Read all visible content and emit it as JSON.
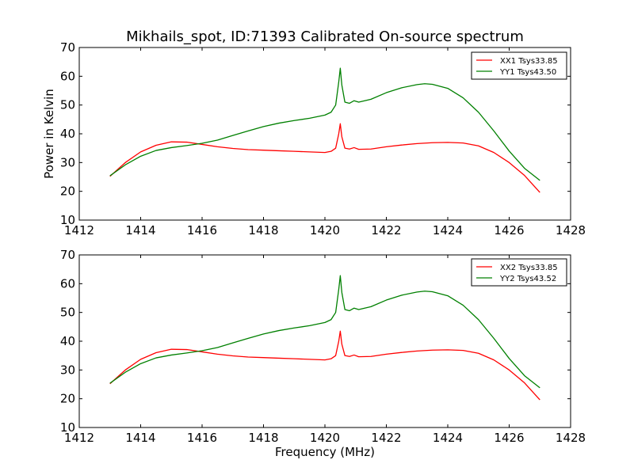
{
  "figure": {
    "title": "Mikhails_spot, ID:71393 Calibrated On-source spectrum",
    "xlabel": "Frequency (MHz)"
  },
  "chart_data": [
    {
      "type": "line",
      "title": "Mikhails_spot, ID:71393 Calibrated On-source spectrum",
      "xlabel": "",
      "ylabel": "Power in Kelvin",
      "xlim": [
        1412,
        1428
      ],
      "ylim": [
        10,
        70
      ],
      "xticks": [
        1412,
        1414,
        1416,
        1418,
        1420,
        1422,
        1424,
        1426,
        1428
      ],
      "yticks": [
        10,
        20,
        30,
        40,
        50,
        60,
        70
      ],
      "grid": false,
      "legend_position": "top-right",
      "series": [
        {
          "name": "XX1 Tsys33.85",
          "color": "#ff0000",
          "points": [
            [
              1413.0,
              25.2
            ],
            [
              1413.5,
              30.0
            ],
            [
              1414.0,
              33.7
            ],
            [
              1414.5,
              36.0
            ],
            [
              1415.0,
              37.2
            ],
            [
              1415.5,
              37.1
            ],
            [
              1416.0,
              36.3
            ],
            [
              1416.5,
              35.5
            ],
            [
              1417.0,
              34.9
            ],
            [
              1417.5,
              34.5
            ],
            [
              1418.0,
              34.3
            ],
            [
              1418.5,
              34.1
            ],
            [
              1419.0,
              33.9
            ],
            [
              1419.5,
              33.7
            ],
            [
              1420.0,
              33.5
            ],
            [
              1420.2,
              33.9
            ],
            [
              1420.35,
              35.0
            ],
            [
              1420.45,
              40.0
            ],
            [
              1420.5,
              43.5
            ],
            [
              1420.55,
              39.0
            ],
            [
              1420.65,
              35.0
            ],
            [
              1420.8,
              34.7
            ],
            [
              1420.95,
              35.2
            ],
            [
              1421.1,
              34.6
            ],
            [
              1421.5,
              34.7
            ],
            [
              1422.0,
              35.5
            ],
            [
              1422.5,
              36.1
            ],
            [
              1423.0,
              36.6
            ],
            [
              1423.5,
              36.9
            ],
            [
              1424.0,
              37.0
            ],
            [
              1424.5,
              36.8
            ],
            [
              1425.0,
              35.8
            ],
            [
              1425.5,
              33.5
            ],
            [
              1426.0,
              30.0
            ],
            [
              1426.5,
              25.5
            ],
            [
              1427.0,
              19.6
            ]
          ]
        },
        {
          "name": "YY1 Tsys43.50",
          "color": "#008000",
          "points": [
            [
              1413.0,
              25.4
            ],
            [
              1413.5,
              29.2
            ],
            [
              1414.0,
              32.2
            ],
            [
              1414.5,
              34.2
            ],
            [
              1415.0,
              35.2
            ],
            [
              1415.5,
              35.9
            ],
            [
              1416.0,
              36.7
            ],
            [
              1416.5,
              37.8
            ],
            [
              1417.0,
              39.4
            ],
            [
              1417.5,
              41.0
            ],
            [
              1418.0,
              42.5
            ],
            [
              1418.5,
              43.7
            ],
            [
              1419.0,
              44.6
            ],
            [
              1419.5,
              45.4
            ],
            [
              1420.0,
              46.5
            ],
            [
              1420.2,
              47.5
            ],
            [
              1420.35,
              50.0
            ],
            [
              1420.45,
              58.0
            ],
            [
              1420.5,
              62.8
            ],
            [
              1420.55,
              57.0
            ],
            [
              1420.65,
              51.0
            ],
            [
              1420.8,
              50.6
            ],
            [
              1420.95,
              51.5
            ],
            [
              1421.1,
              51.0
            ],
            [
              1421.5,
              52.0
            ],
            [
              1422.0,
              54.3
            ],
            [
              1422.5,
              56.0
            ],
            [
              1423.0,
              57.1
            ],
            [
              1423.25,
              57.4
            ],
            [
              1423.5,
              57.2
            ],
            [
              1424.0,
              55.8
            ],
            [
              1424.5,
              52.5
            ],
            [
              1425.0,
              47.5
            ],
            [
              1425.5,
              41.0
            ],
            [
              1426.0,
              34.0
            ],
            [
              1426.5,
              28.0
            ],
            [
              1427.0,
              23.8
            ]
          ]
        }
      ]
    },
    {
      "type": "line",
      "title": "",
      "xlabel": "Frequency (MHz)",
      "ylabel": "",
      "xlim": [
        1412,
        1428
      ],
      "ylim": [
        10,
        70
      ],
      "xticks": [
        1412,
        1414,
        1416,
        1418,
        1420,
        1422,
        1424,
        1426,
        1428
      ],
      "yticks": [
        10,
        20,
        30,
        40,
        50,
        60,
        70
      ],
      "grid": false,
      "legend_position": "top-right",
      "series": [
        {
          "name": "XX2 Tsys33.85",
          "color": "#ff0000",
          "points": [
            [
              1413.0,
              25.2
            ],
            [
              1413.5,
              30.0
            ],
            [
              1414.0,
              33.7
            ],
            [
              1414.5,
              36.0
            ],
            [
              1415.0,
              37.2
            ],
            [
              1415.5,
              37.1
            ],
            [
              1416.0,
              36.3
            ],
            [
              1416.5,
              35.5
            ],
            [
              1417.0,
              34.9
            ],
            [
              1417.5,
              34.5
            ],
            [
              1418.0,
              34.3
            ],
            [
              1418.5,
              34.1
            ],
            [
              1419.0,
              33.9
            ],
            [
              1419.5,
              33.7
            ],
            [
              1420.0,
              33.5
            ],
            [
              1420.2,
              33.9
            ],
            [
              1420.35,
              35.0
            ],
            [
              1420.45,
              40.0
            ],
            [
              1420.5,
              43.5
            ],
            [
              1420.55,
              39.0
            ],
            [
              1420.65,
              35.0
            ],
            [
              1420.8,
              34.7
            ],
            [
              1420.95,
              35.2
            ],
            [
              1421.1,
              34.6
            ],
            [
              1421.5,
              34.7
            ],
            [
              1422.0,
              35.5
            ],
            [
              1422.5,
              36.1
            ],
            [
              1423.0,
              36.6
            ],
            [
              1423.5,
              36.9
            ],
            [
              1424.0,
              37.0
            ],
            [
              1424.5,
              36.8
            ],
            [
              1425.0,
              35.8
            ],
            [
              1425.5,
              33.5
            ],
            [
              1426.0,
              30.0
            ],
            [
              1426.5,
              25.5
            ],
            [
              1427.0,
              19.6
            ]
          ]
        },
        {
          "name": "YY2 Tsys43.52",
          "color": "#008000",
          "points": [
            [
              1413.0,
              25.4
            ],
            [
              1413.5,
              29.2
            ],
            [
              1414.0,
              32.2
            ],
            [
              1414.5,
              34.2
            ],
            [
              1415.0,
              35.2
            ],
            [
              1415.5,
              35.9
            ],
            [
              1416.0,
              36.7
            ],
            [
              1416.5,
              37.8
            ],
            [
              1417.0,
              39.4
            ],
            [
              1417.5,
              41.0
            ],
            [
              1418.0,
              42.5
            ],
            [
              1418.5,
              43.7
            ],
            [
              1419.0,
              44.6
            ],
            [
              1419.5,
              45.4
            ],
            [
              1420.0,
              46.5
            ],
            [
              1420.2,
              47.5
            ],
            [
              1420.35,
              50.0
            ],
            [
              1420.45,
              58.0
            ],
            [
              1420.5,
              62.8
            ],
            [
              1420.55,
              57.0
            ],
            [
              1420.65,
              51.0
            ],
            [
              1420.8,
              50.6
            ],
            [
              1420.95,
              51.5
            ],
            [
              1421.1,
              51.0
            ],
            [
              1421.5,
              52.0
            ],
            [
              1422.0,
              54.3
            ],
            [
              1422.5,
              56.0
            ],
            [
              1423.0,
              57.1
            ],
            [
              1423.25,
              57.4
            ],
            [
              1423.5,
              57.2
            ],
            [
              1424.0,
              55.8
            ],
            [
              1424.5,
              52.5
            ],
            [
              1425.0,
              47.5
            ],
            [
              1425.5,
              41.0
            ],
            [
              1426.0,
              34.0
            ],
            [
              1426.5,
              28.0
            ],
            [
              1427.0,
              23.8
            ]
          ]
        }
      ]
    }
  ]
}
